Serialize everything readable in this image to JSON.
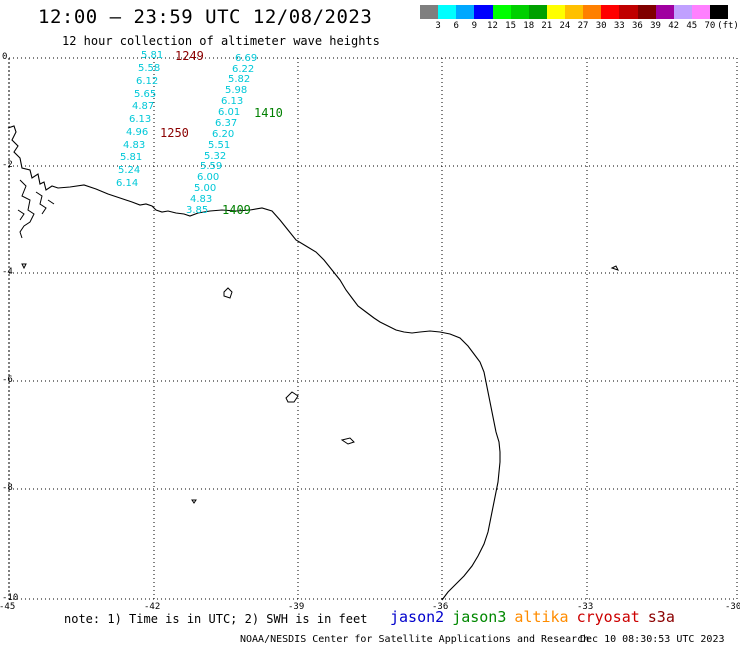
{
  "header": {
    "title": "12:00 – 23:59 UTC 12/08/2023",
    "subtitle": "12 hour collection of altimeter wave heights"
  },
  "legend": {
    "colors": [
      "#7f7f7f",
      "#00ffff",
      "#00a8ff",
      "#0000ff",
      "#00ff00",
      "#00d000",
      "#00a000",
      "#ffff00",
      "#ffc000",
      "#ff8000",
      "#ff0000",
      "#c00000",
      "#800000",
      "#a000a0",
      "#c0a0ff",
      "#ff80ff",
      "#000000"
    ],
    "labels": [
      "3",
      "6",
      "9",
      "12",
      "15",
      "18",
      "21",
      "24",
      "27",
      "30",
      "33",
      "36",
      "39",
      "42",
      "45",
      "70",
      "(ft)"
    ]
  },
  "axes": {
    "lat_labels": [
      "0",
      "-2",
      "-4",
      "-6",
      "-8",
      "-10"
    ],
    "lon_labels": [
      "-45",
      "-42",
      "-39",
      "-36",
      "-33",
      "-30"
    ]
  },
  "tracks": {
    "left_values": [
      "5.81",
      "5.58",
      "6.12",
      "5.65",
      "4.87",
      "6.13",
      "4.96",
      "4.83",
      "5.81",
      "5.24",
      "6.14"
    ],
    "right_values": [
      "6.69",
      "6.22",
      "5.82",
      "5.98",
      "6.13",
      "6.01",
      "6.37",
      "6.20",
      "5.51",
      "5.32",
      "5.59",
      "6.00",
      "5.00",
      "4.83",
      "3.85"
    ],
    "times": {
      "t1249": "1249",
      "t1250": "1250",
      "t1410": "1410",
      "t1409": "1409"
    },
    "time_colors": {
      "cryosat": "#8b0000",
      "jason3": "#008000"
    },
    "value_color": "#00c8d8"
  },
  "footer": {
    "note": "note: 1) Time is in UTC; 2) SWH is in feet",
    "satellites": [
      {
        "name": "jason2",
        "color": "#0000cc"
      },
      {
        "name": "jason3",
        "color": "#008800"
      },
      {
        "name": "altika",
        "color": "#ff8c00"
      },
      {
        "name": "cryosat",
        "color": "#cc0000"
      },
      {
        "name": "s3a",
        "color": "#8b0000"
      }
    ],
    "credit": "NOAA/NESDIS Center for Satellite Applications and Research",
    "stamp": "Dec 10 08:30:53 UTC 2023"
  }
}
